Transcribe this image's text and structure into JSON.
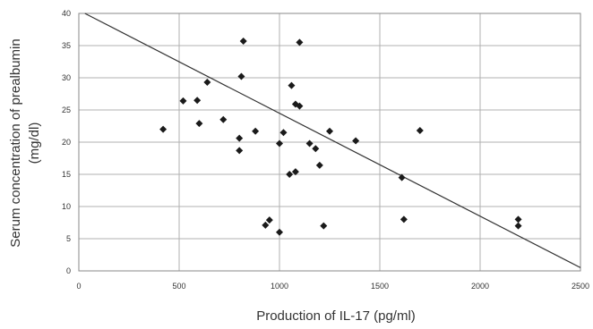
{
  "chart_data": {
    "type": "scatter",
    "title": "",
    "xlabel": "Production of IL-17 (pg/ml)",
    "ylabel_line1": "Serum concentration of prealbumin",
    "ylabel_line2": "(mg/dl)",
    "xlim": [
      0,
      2500
    ],
    "ylim": [
      0,
      40
    ],
    "x_ticks": [
      "0",
      "500",
      "1000",
      "1500",
      "2000",
      "2500"
    ],
    "y_ticks": [
      "0",
      "5",
      "10",
      "15",
      "20",
      "25",
      "30",
      "35",
      "40"
    ],
    "grid": true,
    "legend": "none",
    "marker_color": "#1a1a1a",
    "line_color": "#333333",
    "grid_color": "#b0b0b0",
    "points": [
      {
        "x": 420,
        "y": 22.0
      },
      {
        "x": 520,
        "y": 26.4
      },
      {
        "x": 590,
        "y": 26.5
      },
      {
        "x": 600,
        "y": 22.9
      },
      {
        "x": 640,
        "y": 29.3
      },
      {
        "x": 720,
        "y": 23.5
      },
      {
        "x": 800,
        "y": 20.6
      },
      {
        "x": 800,
        "y": 18.7
      },
      {
        "x": 810,
        "y": 30.2
      },
      {
        "x": 820,
        "y": 35.7
      },
      {
        "x": 880,
        "y": 21.7
      },
      {
        "x": 930,
        "y": 7.1
      },
      {
        "x": 950,
        "y": 7.9
      },
      {
        "x": 1000,
        "y": 19.8
      },
      {
        "x": 1000,
        "y": 6.0
      },
      {
        "x": 1020,
        "y": 21.5
      },
      {
        "x": 1050,
        "y": 15.0
      },
      {
        "x": 1060,
        "y": 28.8
      },
      {
        "x": 1080,
        "y": 15.4
      },
      {
        "x": 1080,
        "y": 25.9
      },
      {
        "x": 1100,
        "y": 35.5
      },
      {
        "x": 1100,
        "y": 25.6
      },
      {
        "x": 1150,
        "y": 19.8
      },
      {
        "x": 1180,
        "y": 19.0
      },
      {
        "x": 1200,
        "y": 16.4
      },
      {
        "x": 1220,
        "y": 7.0
      },
      {
        "x": 1250,
        "y": 21.7
      },
      {
        "x": 1380,
        "y": 20.2
      },
      {
        "x": 1610,
        "y": 14.5
      },
      {
        "x": 1620,
        "y": 8.0
      },
      {
        "x": 1700,
        "y": 21.8
      },
      {
        "x": 2190,
        "y": 8.0
      },
      {
        "x": 2190,
        "y": 7.0
      }
    ],
    "trendline": [
      {
        "x": 30,
        "y": 40.0
      },
      {
        "x": 2500,
        "y": 0.5
      }
    ]
  }
}
